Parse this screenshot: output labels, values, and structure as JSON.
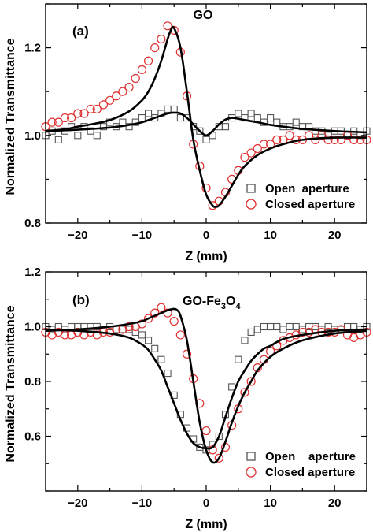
{
  "figure": {
    "ylabel": "Normalized Transmittance",
    "xlabel": "Z (mm)"
  },
  "chart_data": [
    {
      "type": "scatter",
      "panel_label": "(a)",
      "title": "GO",
      "xlabel": "Z (mm)",
      "ylabel": "Normalized Transmittance",
      "xlim": [
        -25,
        25
      ],
      "ylim": [
        0.8,
        1.3
      ],
      "xticks": [
        -20,
        -10,
        0,
        10,
        20
      ],
      "yticks": [
        0.8,
        1.0,
        1.2
      ],
      "ytick_labels": [
        "0.8",
        "1.0",
        "1.2"
      ],
      "grid": false,
      "legend_position": "bottom-right",
      "series": [
        {
          "name": "Open  aperture",
          "marker": "square",
          "color": "#555555",
          "x": [
            -25,
            -24,
            -23,
            -22,
            -21,
            -20,
            -19,
            -18,
            -17,
            -16,
            -15,
            -14,
            -13,
            -12,
            -11,
            -10,
            -9,
            -8,
            -7,
            -6,
            -5,
            -4,
            -3,
            -2,
            -1,
            0,
            1,
            2,
            3,
            4,
            5,
            6,
            7,
            8,
            9,
            10,
            11,
            12,
            13,
            14,
            15,
            16,
            17,
            18,
            19,
            20,
            21,
            22,
            23,
            24,
            25
          ],
          "y": [
            1.0,
            1.01,
            0.99,
            1.01,
            1.02,
            1.0,
            1.02,
            1.01,
            1.0,
            1.02,
            1.03,
            1.02,
            1.03,
            1.02,
            1.03,
            1.04,
            1.05,
            1.04,
            1.05,
            1.06,
            1.06,
            1.04,
            1.04,
            1.02,
            1.01,
            0.99,
            1.0,
            1.02,
            1.02,
            1.04,
            1.05,
            1.04,
            1.05,
            1.04,
            1.03,
            1.04,
            1.03,
            1.02,
            1.02,
            1.03,
            1.02,
            1.02,
            1.01,
            1.01,
            1.0,
            1.01,
            1.01,
            1.0,
            1.01,
            1.0,
            1.01
          ]
        },
        {
          "name": "Closed aperture",
          "marker": "circle",
          "color": "#e03030",
          "x": [
            -25,
            -24,
            -23,
            -22,
            -21,
            -20,
            -19,
            -18,
            -17,
            -16,
            -15,
            -14,
            -13,
            -12,
            -11,
            -10,
            -9,
            -8,
            -7,
            -6,
            -5,
            -4,
            -3,
            -2,
            -1,
            0,
            1,
            2,
            3,
            4,
            5,
            6,
            7,
            8,
            9,
            10,
            11,
            12,
            13,
            14,
            15,
            16,
            17,
            18,
            19,
            20,
            21,
            22,
            23,
            24,
            25
          ],
          "y": [
            1.02,
            1.03,
            1.03,
            1.04,
            1.04,
            1.05,
            1.05,
            1.06,
            1.06,
            1.07,
            1.08,
            1.09,
            1.1,
            1.11,
            1.13,
            1.15,
            1.17,
            1.2,
            1.22,
            1.25,
            1.24,
            1.19,
            1.09,
            0.98,
            0.93,
            0.88,
            0.84,
            0.85,
            0.87,
            0.9,
            0.92,
            0.95,
            0.96,
            0.97,
            0.98,
            0.98,
            0.99,
            0.99,
            1.0,
            0.99,
            0.99,
            1.0,
            0.99,
            1.0,
            0.99,
            0.99,
            0.99,
            1.0,
            0.99,
            0.99,
            0.99
          ]
        },
        {
          "name": "Open aperture fit",
          "marker": "line",
          "color": "#000000",
          "x": [
            -25,
            -20,
            -15,
            -12,
            -10,
            -8,
            -6,
            -5,
            -4,
            -3,
            -2,
            -1,
            0,
            1,
            2,
            3,
            4,
            5,
            6,
            8,
            10,
            12,
            15,
            20,
            25
          ],
          "y": [
            1.01,
            1.013,
            1.018,
            1.024,
            1.03,
            1.04,
            1.05,
            1.052,
            1.05,
            1.04,
            1.025,
            1.01,
            1.0,
            1.01,
            1.025,
            1.036,
            1.04,
            1.038,
            1.035,
            1.03,
            1.024,
            1.02,
            1.015,
            1.01,
            1.007
          ]
        },
        {
          "name": "Closed aperture fit",
          "marker": "line",
          "color": "#000000",
          "x": [
            -25,
            -22,
            -20,
            -18,
            -15,
            -12,
            -10,
            -9,
            -8,
            -7,
            -6,
            -5.5,
            -5,
            -4,
            -3,
            -2,
            -1,
            0,
            1,
            1.5,
            2,
            3,
            4,
            5,
            6,
            8,
            10,
            12,
            15,
            20,
            25
          ],
          "y": [
            1.01,
            1.014,
            1.02,
            1.025,
            1.035,
            1.055,
            1.08,
            1.1,
            1.13,
            1.17,
            1.22,
            1.24,
            1.245,
            1.2,
            1.1,
            0.99,
            0.92,
            0.865,
            0.84,
            0.837,
            0.84,
            0.86,
            0.885,
            0.91,
            0.93,
            0.955,
            0.97,
            0.98,
            0.99,
            0.995,
            0.995
          ]
        }
      ]
    },
    {
      "type": "scatter",
      "panel_label": "(b)",
      "title": "GO-Fe",
      "title_sub1": "3",
      "title_mid": "O",
      "title_sub2": "4",
      "xlabel": "Z (mm)",
      "ylabel": "Normalized Transmittance",
      "xlim": [
        -25,
        25
      ],
      "ylim": [
        0.4,
        1.2
      ],
      "xticks": [
        -20,
        -10,
        0,
        10,
        20
      ],
      "yticks": [
        0.6,
        0.8,
        1.0,
        1.2
      ],
      "ytick_labels": [
        "0.6",
        "0.8",
        "1.0",
        "1.2"
      ],
      "grid": false,
      "legend_position": "bottom-right",
      "series": [
        {
          "name": "Open    aperture",
          "marker": "square",
          "color": "#555555",
          "x": [
            -25,
            -24,
            -23,
            -22,
            -21,
            -20,
            -19,
            -18,
            -17,
            -16,
            -15,
            -14,
            -13,
            -12,
            -11,
            -10,
            -9,
            -8,
            -7,
            -6,
            -5,
            -4,
            -3,
            -2,
            -1,
            0,
            1,
            2,
            3,
            4,
            5,
            6,
            7,
            8,
            9,
            10,
            11,
            12,
            13,
            14,
            15,
            16,
            17,
            18,
            19,
            20,
            21,
            22,
            23,
            24,
            25
          ],
          "y": [
            1.0,
            0.99,
            1.0,
            0.99,
            1.0,
            1.0,
            1.0,
            1.0,
            1.0,
            0.99,
            1.0,
            0.99,
            0.99,
            0.99,
            0.98,
            0.97,
            0.95,
            0.92,
            0.88,
            0.83,
            0.75,
            0.68,
            0.63,
            0.59,
            0.56,
            0.55,
            0.57,
            0.6,
            0.68,
            0.78,
            0.88,
            0.95,
            0.98,
            0.99,
            1.0,
            1.0,
            1.0,
            0.99,
            1.0,
            1.0,
            0.99,
            1.0,
            1.0,
            0.99,
            1.0,
            0.99,
            0.99,
            1.0,
            1.0,
            0.99,
            1.0
          ]
        },
        {
          "name": "Closed aperture",
          "marker": "circle",
          "color": "#e03030",
          "x": [
            -25,
            -24,
            -23,
            -22,
            -21,
            -20,
            -19,
            -18,
            -17,
            -16,
            -15,
            -14,
            -13,
            -12,
            -11,
            -10,
            -9,
            -8,
            -7,
            -6,
            -5,
            -4,
            -3,
            -2,
            -1,
            0,
            1,
            2,
            3,
            4,
            5,
            6,
            7,
            8,
            9,
            10,
            11,
            12,
            13,
            14,
            15,
            16,
            17,
            18,
            19,
            20,
            21,
            22,
            23,
            24,
            25
          ],
          "y": [
            0.98,
            0.97,
            0.98,
            0.97,
            0.97,
            0.98,
            0.97,
            0.98,
            0.97,
            0.98,
            0.98,
            0.99,
            0.99,
            1.0,
            1.0,
            1.01,
            1.03,
            1.05,
            1.07,
            1.05,
            1.02,
            0.97,
            0.9,
            0.81,
            0.72,
            0.62,
            0.55,
            0.52,
            0.56,
            0.64,
            0.7,
            0.76,
            0.8,
            0.85,
            0.88,
            0.91,
            0.93,
            0.95,
            0.96,
            0.97,
            0.98,
            0.98,
            0.99,
            0.98,
            0.98,
            0.98,
            0.99,
            0.97,
            0.96,
            0.97,
            0.98
          ]
        },
        {
          "name": "Open aperture fit",
          "marker": "line",
          "color": "#000000",
          "x": [
            -25,
            -20,
            -15,
            -12,
            -10,
            -9,
            -8,
            -7,
            -6,
            -5,
            -4,
            -3,
            -2,
            -1,
            0,
            1,
            2,
            3,
            4,
            5,
            6,
            7,
            8,
            9,
            10,
            12,
            15,
            20,
            25
          ],
          "y": [
            0.99,
            0.985,
            0.975,
            0.96,
            0.935,
            0.915,
            0.88,
            0.84,
            0.78,
            0.72,
            0.66,
            0.61,
            0.575,
            0.56,
            0.556,
            0.56,
            0.6,
            0.67,
            0.74,
            0.8,
            0.84,
            0.875,
            0.9,
            0.92,
            0.93,
            0.955,
            0.97,
            0.985,
            0.99
          ]
        },
        {
          "name": "Closed aperture fit",
          "marker": "line",
          "color": "#000000",
          "x": [
            -25,
            -20,
            -15,
            -12,
            -10,
            -9,
            -8,
            -7,
            -6,
            -5,
            -4.5,
            -4,
            -3,
            -2,
            -1,
            0,
            1,
            2,
            3,
            4,
            5,
            6,
            7,
            8,
            10,
            12,
            15,
            20,
            25
          ],
          "y": [
            0.985,
            0.99,
            1.0,
            1.01,
            1.02,
            1.03,
            1.04,
            1.05,
            1.06,
            1.065,
            1.06,
            1.04,
            0.95,
            0.8,
            0.65,
            0.55,
            0.505,
            0.52,
            0.58,
            0.65,
            0.71,
            0.76,
            0.8,
            0.84,
            0.89,
            0.92,
            0.95,
            0.975,
            0.985
          ]
        }
      ]
    }
  ]
}
